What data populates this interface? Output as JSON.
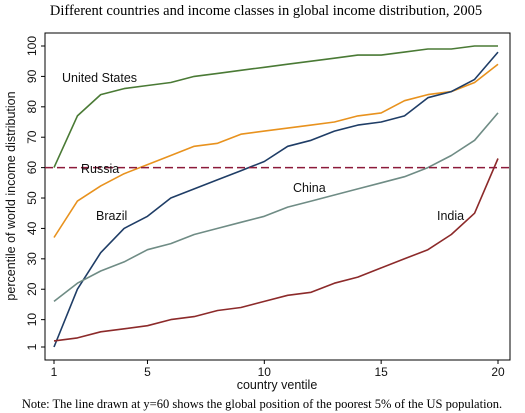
{
  "chart_data": {
    "type": "line",
    "title": "Different countries and income classes in global income distribution, 2005",
    "xlabel": "country ventile",
    "ylabel": "percentile of world income distribution",
    "xlim": [
      1,
      20
    ],
    "ylim": [
      1,
      100
    ],
    "xticks": [
      1,
      5,
      10,
      15,
      20
    ],
    "yticks": [
      1,
      10,
      20,
      30,
      40,
      50,
      60,
      70,
      80,
      90,
      100
    ],
    "grid": false,
    "legend": "none",
    "x": [
      1,
      2,
      3,
      4,
      5,
      6,
      7,
      8,
      9,
      10,
      11,
      12,
      13,
      14,
      15,
      16,
      17,
      18,
      19,
      20
    ],
    "series": [
      {
        "name": "United States",
        "color": "#4a7a35",
        "values": [
          60,
          77,
          84,
          86,
          87,
          88,
          90,
          91,
          92,
          93,
          94,
          95,
          96,
          97,
          97,
          98,
          99,
          99,
          100,
          100
        ]
      },
      {
        "name": "Russia",
        "color": "#e8921e",
        "values": [
          37,
          49,
          54,
          58,
          61,
          64,
          67,
          68,
          71,
          72,
          73,
          74,
          75,
          77,
          78,
          82,
          84,
          85,
          88,
          94
        ]
      },
      {
        "name": "Brazil",
        "color": "#1f3d66",
        "values": [
          1,
          20,
          32,
          40,
          44,
          50,
          53,
          56,
          59,
          62,
          67,
          69,
          72,
          74,
          75,
          77,
          83,
          85,
          89,
          98
        ]
      },
      {
        "name": "China",
        "color": "#6f8c85",
        "values": [
          16,
          22,
          26,
          29,
          33,
          35,
          38,
          40,
          42,
          44,
          47,
          49,
          51,
          53,
          55,
          57,
          60,
          64,
          69,
          78
        ]
      },
      {
        "name": "India",
        "color": "#8c2a2a",
        "values": [
          3,
          4,
          6,
          7,
          8,
          10,
          11,
          13,
          14,
          16,
          18,
          19,
          22,
          24,
          27,
          30,
          33,
          38,
          45,
          63
        ]
      }
    ],
    "reference_line": {
      "y": 60,
      "color": "#8c1a3a",
      "style": "dashed"
    },
    "note": "Note: The line drawn at y=60 shows the global position of the poorest 5% of the US population."
  }
}
